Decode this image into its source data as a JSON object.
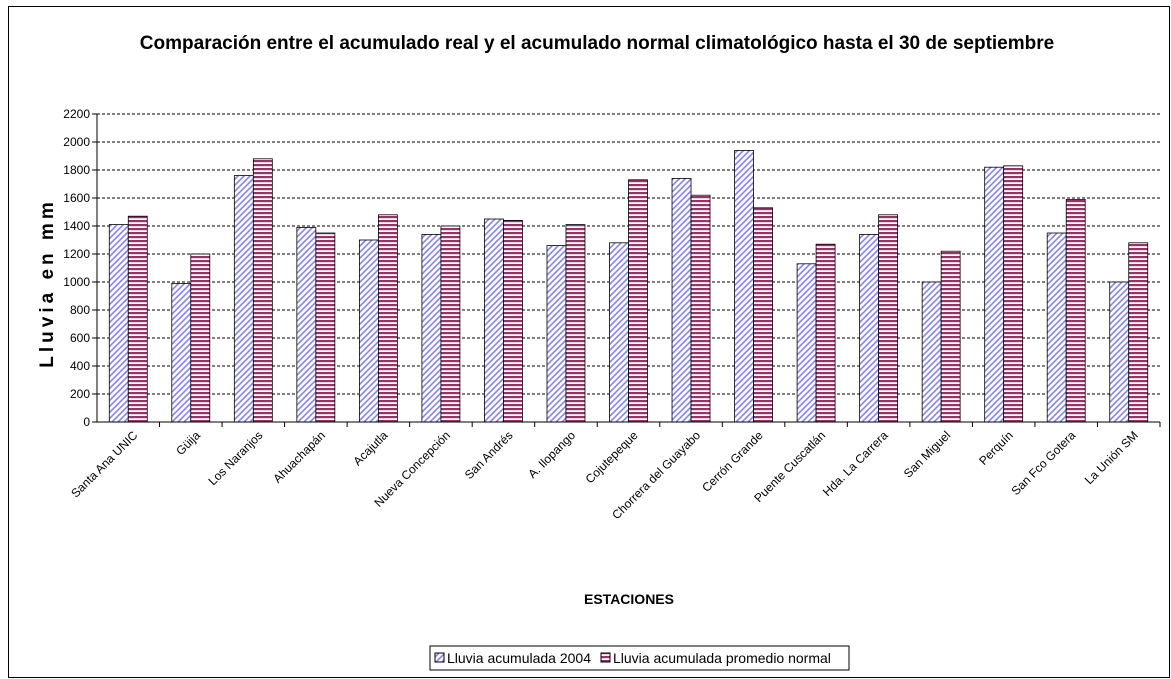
{
  "chart_data": {
    "type": "bar",
    "title": "Comparación entre el acumulado real y el acumulado normal climatológico hasta el 30 de septiembre",
    "xlabel": "ESTACIONES",
    "ylabel": "Lluvia en mm",
    "ylim": [
      0,
      2200
    ],
    "yticks": [
      0,
      200,
      400,
      600,
      800,
      1000,
      1200,
      1400,
      1600,
      1800,
      2000,
      2200
    ],
    "ytick_labels": [
      "0",
      "200",
      "400",
      "600",
      "800",
      "1000",
      "1200",
      "1400",
      "1600",
      "1800",
      "2000",
      "2200"
    ],
    "grid": true,
    "legend_position": "bottom",
    "categories": [
      "Santa Ana UNIC",
      "Güija",
      "Los Naranjos",
      "Ahuachapán",
      "Acajutla",
      "Nueva Concepción",
      "San Andrés",
      "A. Ilopango",
      "Cojutepeque",
      "Chorrera del Guayabo",
      "Cerrón Grande",
      "Puente Cuscatlán",
      "Hda. La Carrera",
      "San Miguel",
      "Perquín",
      "San Fco Gotera",
      "La Unión SM"
    ],
    "series": [
      {
        "name": "Lluvia acumulada 2004",
        "color": "#9999ff",
        "pattern": "diagonal",
        "values": [
          1410,
          990,
          1760,
          1390,
          1300,
          1340,
          1450,
          1260,
          1280,
          1740,
          1940,
          1130,
          1340,
          1000,
          1820,
          1350,
          1000
        ]
      },
      {
        "name": "Lluvia acumulada promedio normal",
        "color": "#993366",
        "pattern": "horizontal",
        "values": [
          1470,
          1200,
          1880,
          1350,
          1480,
          1400,
          1440,
          1410,
          1730,
          1620,
          1530,
          1270,
          1480,
          1220,
          1830,
          1590,
          1280
        ]
      }
    ]
  }
}
